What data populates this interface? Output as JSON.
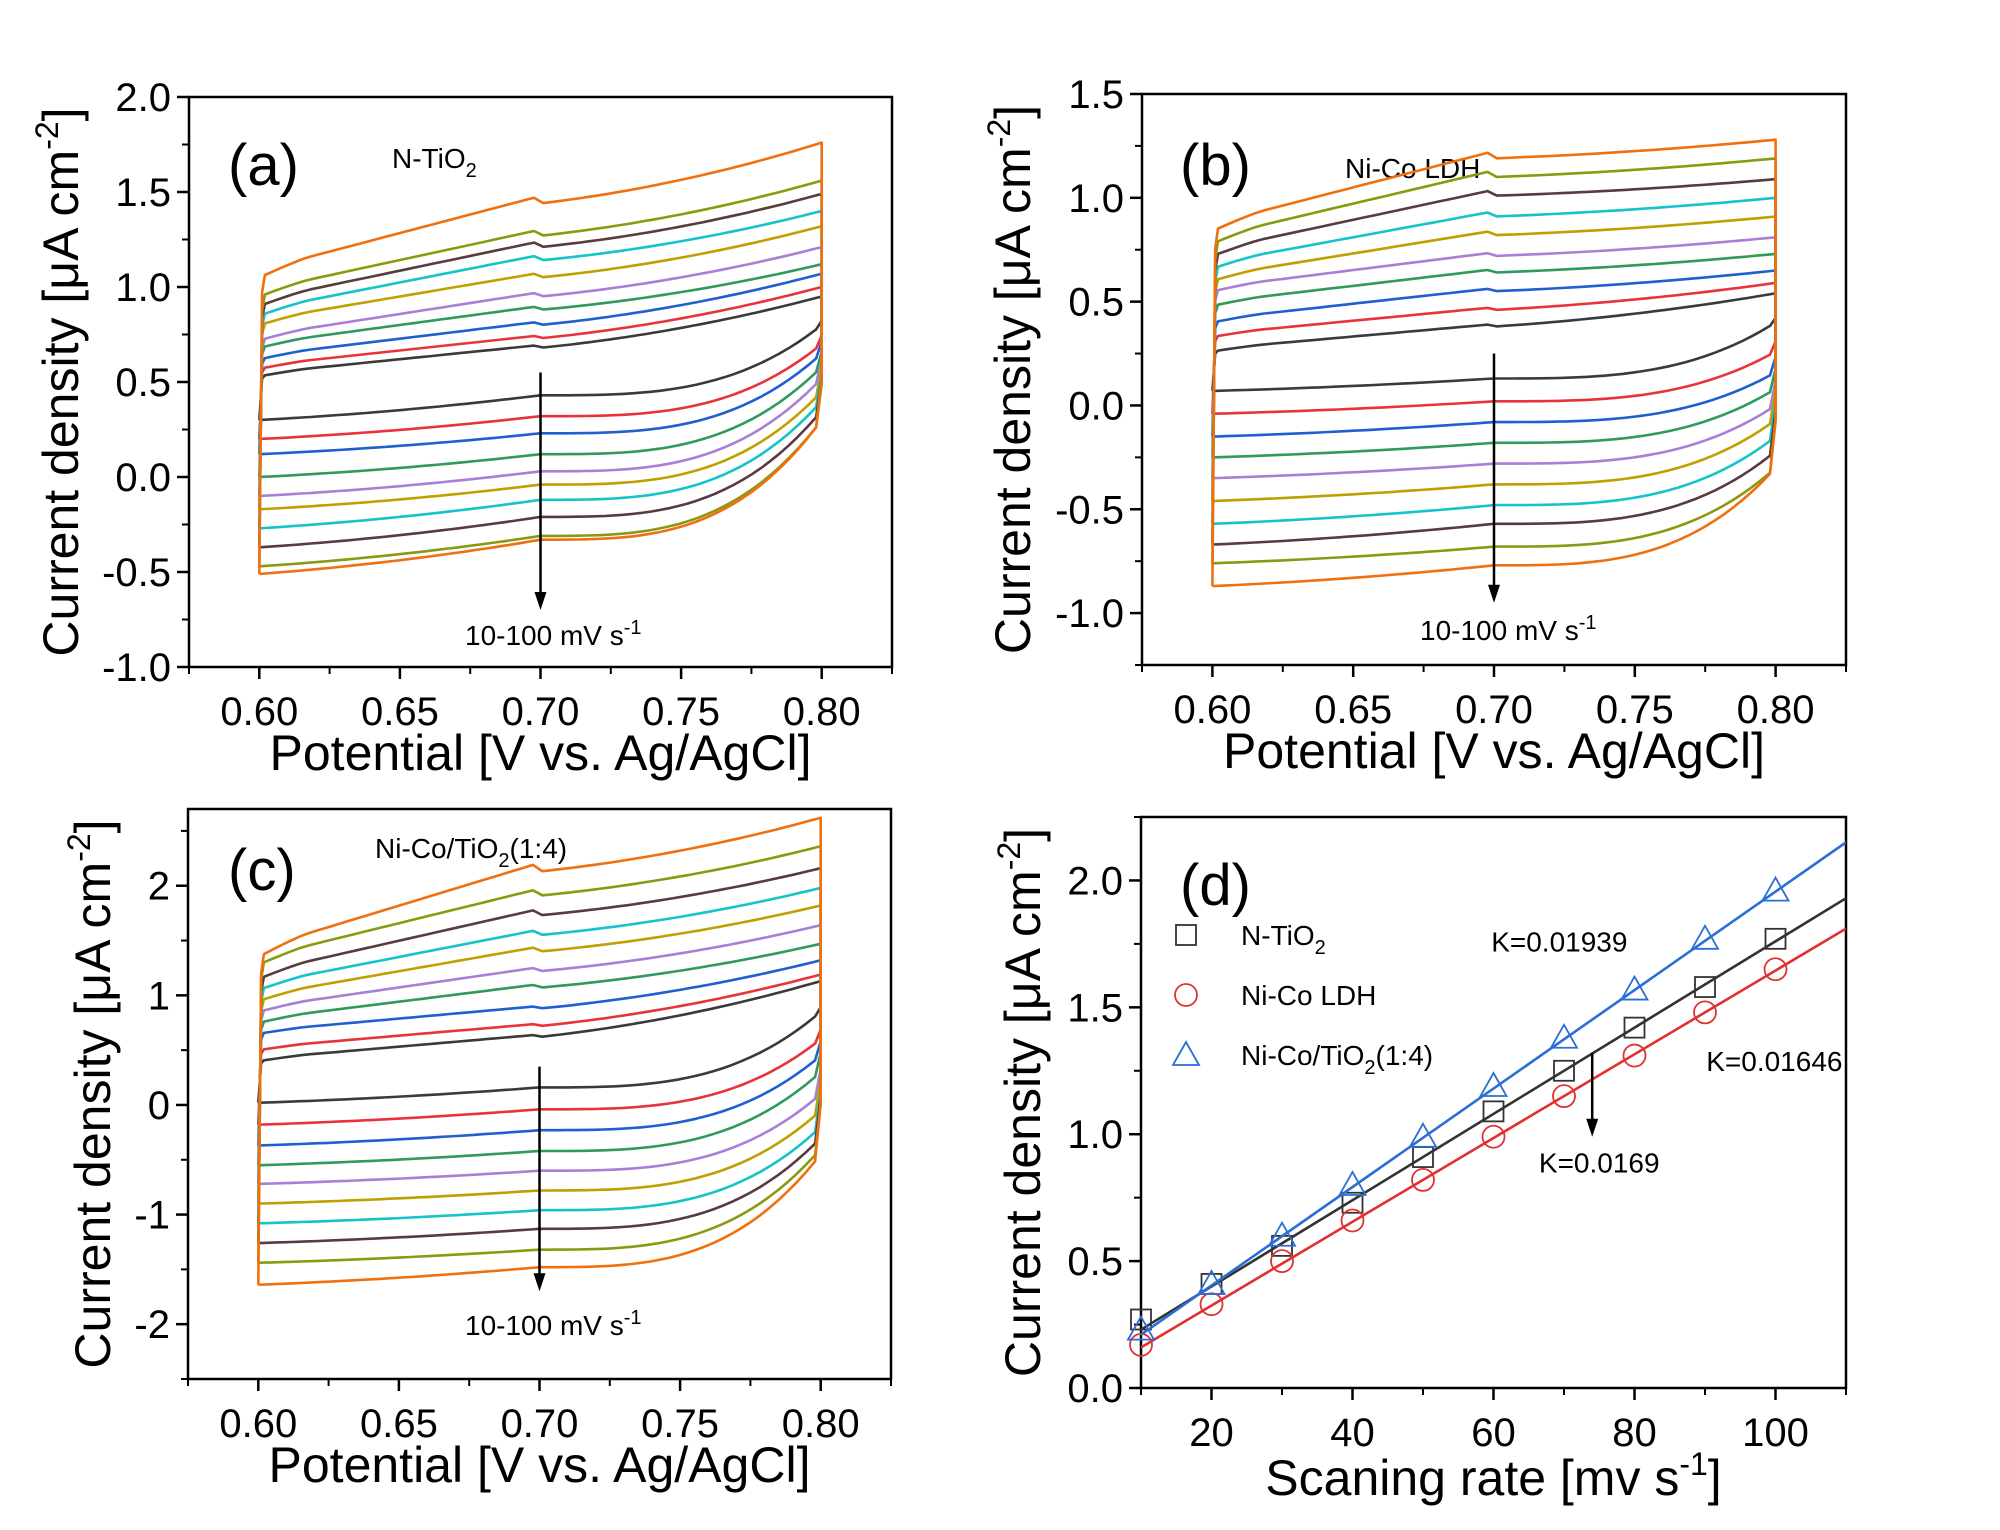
{
  "colors": {
    "scan_rates": [
      "#3a3a3a",
      "#e8333a",
      "#1f5fcf",
      "#2e9a5c",
      "#a97fd6",
      "#c0a000",
      "#14c4c8",
      "#5a3b3b",
      "#8a9a10",
      "#f07010"
    ],
    "n_tio2": "#333333",
    "ni_co_ldh": "#e03030",
    "ni_co_tio2": "#2a6fd6"
  },
  "chart_data": [
    {
      "id": "a",
      "type": "line",
      "panel_letter": "(a)",
      "title": "N-TiO2",
      "title_main": "N-TiO",
      "title_sub": "2",
      "title_tail": "",
      "xlabel": "Potential [V vs. Ag/AgCl]",
      "ylabel_main": "Current density [μA cm",
      "ylabel_sup": "-2",
      "ylabel_tail": "]",
      "xlim": [
        0.575,
        0.825
      ],
      "ylim": [
        -1.0,
        2.0
      ],
      "xticks": [
        "0.60",
        "0.65",
        "0.70",
        "0.75",
        "0.80"
      ],
      "xtick_values": [
        0.6,
        0.65,
        0.7,
        0.75,
        0.8
      ],
      "yticks": [
        "-1.0",
        "-0.5",
        "0.0",
        "0.5",
        "1.0",
        "1.5",
        "2.0"
      ],
      "ytick_values": [
        -1.0,
        -0.5,
        0.0,
        0.5,
        1.0,
        1.5,
        2.0
      ],
      "annotation": {
        "text_main": "10-100 mV s",
        "text_sup": "-1",
        "arrow_x": 0.7,
        "arrow_from": 0.55,
        "arrow_to": -0.7
      },
      "scan_rates_mV_s": [
        10,
        20,
        30,
        40,
        50,
        60,
        70,
        80,
        90,
        100
      ],
      "potential_range": [
        0.6,
        0.8
      ],
      "upper_start": [
        0.53,
        0.57,
        0.62,
        0.68,
        0.72,
        0.8,
        0.85,
        0.9,
        0.95,
        1.05
      ],
      "upper_mid": [
        0.68,
        0.73,
        0.8,
        0.88,
        0.95,
        1.05,
        1.14,
        1.21,
        1.27,
        1.44
      ],
      "upper_end": [
        0.95,
        1.0,
        1.07,
        1.12,
        1.21,
        1.32,
        1.4,
        1.49,
        1.56,
        1.76
      ],
      "lower_start": [
        0.3,
        0.2,
        0.12,
        0.0,
        -0.1,
        -0.17,
        -0.27,
        -0.37,
        -0.47,
        -0.51
      ],
      "lower_mid": [
        0.43,
        0.32,
        0.23,
        0.12,
        0.03,
        -0.04,
        -0.12,
        -0.21,
        -0.31,
        -0.33
      ],
      "lower_end": [
        0.8,
        0.7,
        0.65,
        0.58,
        0.52,
        0.45,
        0.4,
        0.35,
        0.3,
        0.3
      ]
    },
    {
      "id": "b",
      "type": "line",
      "panel_letter": "(b)",
      "title": "Ni-Co LDH",
      "title_main": "Ni-Co LDH",
      "title_sub": "",
      "title_tail": "",
      "xlabel": "Potential [V vs. Ag/AgCl]",
      "ylabel_main": "Current density [μA cm",
      "ylabel_sup": "-2",
      "ylabel_tail": "]",
      "xlim": [
        0.575,
        0.825
      ],
      "ylim": [
        -1.25,
        1.5
      ],
      "xticks": [
        "0.60",
        "0.65",
        "0.70",
        "0.75",
        "0.80"
      ],
      "xtick_values": [
        0.6,
        0.65,
        0.7,
        0.75,
        0.8
      ],
      "yticks": [
        "-1.0",
        "-0.5",
        "0.0",
        "0.5",
        "1.0",
        "1.5"
      ],
      "ytick_values": [
        -1.0,
        -0.5,
        0.0,
        0.5,
        1.0,
        1.5
      ],
      "annotation": {
        "text_main": "10-100 mV s",
        "text_sup": "-1",
        "arrow_x": 0.7,
        "arrow_from": 0.25,
        "arrow_to": -0.95
      },
      "scan_rates_mV_s": [
        10,
        20,
        30,
        40,
        50,
        60,
        70,
        80,
        90,
        100
      ],
      "potential_range": [
        0.6,
        0.8
      ],
      "upper_start": [
        0.26,
        0.33,
        0.4,
        0.48,
        0.55,
        0.6,
        0.66,
        0.72,
        0.78,
        0.84
      ],
      "upper_mid": [
        0.38,
        0.46,
        0.55,
        0.64,
        0.72,
        0.82,
        0.91,
        1.01,
        1.1,
        1.19
      ],
      "upper_end": [
        0.54,
        0.59,
        0.65,
        0.73,
        0.81,
        0.91,
        1.0,
        1.09,
        1.19,
        1.28
      ],
      "lower_start": [
        0.07,
        -0.04,
        -0.15,
        -0.25,
        -0.35,
        -0.46,
        -0.57,
        -0.67,
        -0.76,
        -0.87
      ],
      "lower_mid": [
        0.13,
        0.02,
        -0.08,
        -0.18,
        -0.28,
        -0.38,
        -0.48,
        -0.57,
        -0.68,
        -0.77
      ],
      "lower_end": [
        0.4,
        0.26,
        0.16,
        0.08,
        0.0,
        -0.07,
        -0.15,
        -0.22,
        -0.3,
        -0.3
      ]
    },
    {
      "id": "c",
      "type": "line",
      "panel_letter": "(c)",
      "title": "Ni-Co/TiO2(1:4)",
      "title_main": "Ni-Co/TiO",
      "title_sub": "2",
      "title_tail": "(1:4)",
      "xlabel": "Potential [V vs. Ag/AgCl]",
      "ylabel_main": "Current density [μA cm",
      "ylabel_sup": "-2",
      "ylabel_tail": "]",
      "xlim": [
        0.575,
        0.825
      ],
      "ylim": [
        -2.5,
        2.7
      ],
      "xticks": [
        "0.60",
        "0.65",
        "0.70",
        "0.75",
        "0.80"
      ],
      "xtick_values": [
        0.6,
        0.65,
        0.7,
        0.75,
        0.8
      ],
      "yticks": [
        "-2",
        "-1",
        "0",
        "1",
        "2"
      ],
      "ytick_values": [
        -2,
        -1,
        0,
        1,
        2
      ],
      "annotation": {
        "text_main": "10-100 mV s",
        "text_sup": "-1",
        "arrow_x": 0.7,
        "arrow_from": 0.35,
        "arrow_to": -1.7
      },
      "scan_rates_mV_s": [
        10,
        20,
        30,
        40,
        50,
        60,
        70,
        80,
        90,
        100
      ],
      "potential_range": [
        0.6,
        0.8
      ],
      "upper_start": [
        0.4,
        0.5,
        0.65,
        0.75,
        0.85,
        0.95,
        1.05,
        1.15,
        1.28,
        1.35
      ],
      "upper_mid": [
        0.62,
        0.72,
        0.88,
        1.07,
        1.22,
        1.4,
        1.55,
        1.73,
        1.91,
        2.13
      ],
      "upper_end": [
        1.13,
        1.19,
        1.32,
        1.47,
        1.64,
        1.82,
        1.98,
        2.16,
        2.36,
        2.62
      ],
      "lower_start": [
        0.02,
        -0.18,
        -0.37,
        -0.55,
        -0.72,
        -0.9,
        -1.08,
        -1.26,
        -1.44,
        -1.64
      ],
      "lower_mid": [
        0.16,
        -0.04,
        -0.23,
        -0.42,
        -0.6,
        -0.78,
        -0.96,
        -1.13,
        -1.32,
        -1.48
      ],
      "lower_end": [
        0.85,
        0.6,
        0.45,
        0.3,
        0.1,
        -0.05,
        -0.2,
        -0.3,
        -0.4,
        -0.45
      ]
    },
    {
      "id": "d",
      "type": "scatter",
      "panel_letter": "(d)",
      "xlabel_main": "Scaning rate [mv s",
      "xlabel_sup": "-1",
      "xlabel_tail": "]",
      "ylabel_main": "Current density [μA cm",
      "ylabel_sup": "-2",
      "ylabel_tail": "]",
      "xlim": [
        10,
        110
      ],
      "ylim": [
        0.0,
        2.25
      ],
      "xticks": [
        "20",
        "40",
        "60",
        "80",
        "100"
      ],
      "xtick_values": [
        20,
        40,
        60,
        80,
        100
      ],
      "yticks": [
        "0.0",
        "0.5",
        "1.0",
        "1.5",
        "2.0"
      ],
      "ytick_values": [
        0.0,
        0.5,
        1.0,
        1.5,
        2.0
      ],
      "x": [
        10,
        20,
        30,
        40,
        50,
        60,
        70,
        80,
        90,
        100
      ],
      "series": [
        {
          "name": "N-TiO2",
          "label_main": "N-TiO",
          "label_sub": "2",
          "label_tail": "",
          "marker": "square",
          "color_key": "n_tio2",
          "values": [
            0.27,
            0.41,
            0.56,
            0.73,
            0.91,
            1.09,
            1.25,
            1.42,
            1.58,
            1.77
          ],
          "fit": {
            "x": [
              10,
              110
            ],
            "y": [
              0.23,
              1.93
            ]
          }
        },
        {
          "name": "Ni-Co LDH",
          "label_main": "Ni-Co LDH",
          "label_sub": "",
          "label_tail": "",
          "marker": "circle",
          "color_key": "ni_co_ldh",
          "values": [
            0.17,
            0.33,
            0.5,
            0.66,
            0.82,
            0.99,
            1.15,
            1.31,
            1.48,
            1.65
          ],
          "fit": {
            "x": [
              10,
              110
            ],
            "y": [
              0.16,
              1.81
            ]
          }
        },
        {
          "name": "Ni-Co/TiO2(1:4)",
          "label_main": "Ni-Co/TiO",
          "label_sub": "2",
          "label_tail": "(1:4)",
          "marker": "triangle",
          "color_key": "ni_co_tio2",
          "values": [
            0.23,
            0.41,
            0.6,
            0.8,
            0.99,
            1.19,
            1.38,
            1.57,
            1.77,
            1.96
          ],
          "fit": {
            "x": [
              10,
              110
            ],
            "y": [
              0.21,
              2.15
            ]
          }
        }
      ],
      "legend_position": "top-left",
      "annotations": [
        {
          "text": "K=0.01939",
          "x": 79,
          "y": 1.72
        },
        {
          "text": "K=0.01646",
          "x": 109.5,
          "y": 1.25
        },
        {
          "text": "K=0.0169",
          "x": 75,
          "y": 0.85
        }
      ],
      "arrow": {
        "x": 74,
        "from": 1.32,
        "to": 0.99
      }
    }
  ]
}
